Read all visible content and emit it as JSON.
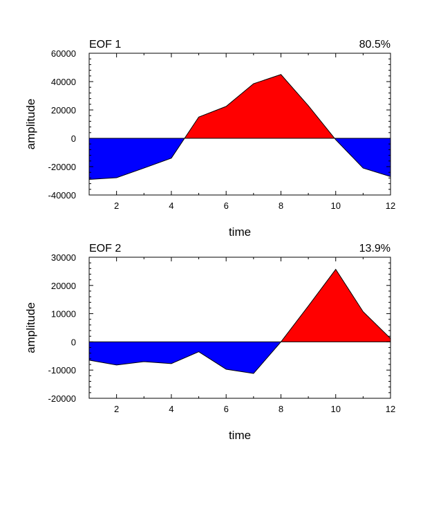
{
  "chart_data": [
    {
      "type": "area",
      "title": "EOF 1",
      "right_title": "80.5%",
      "xlabel": "time",
      "ylabel": "amplitude",
      "xlim": [
        1,
        12
      ],
      "ylim": [
        -40000,
        60000
      ],
      "x_ticks": [
        2,
        4,
        6,
        8,
        10,
        12
      ],
      "y_ticks": [
        -40000,
        -20000,
        0,
        20000,
        40000,
        60000
      ],
      "x": [
        1,
        2,
        3,
        4,
        5,
        6,
        7,
        8,
        9,
        10,
        11,
        12
      ],
      "values": [
        -29000,
        -27800,
        -21000,
        -14000,
        15000,
        22500,
        38500,
        45000,
        23000,
        -1000,
        -21000,
        -27000
      ],
      "fill_above": "#ff0000",
      "fill_below": "#0000ff"
    },
    {
      "type": "area",
      "title": "EOF 2",
      "right_title": "13.9%",
      "xlabel": "time",
      "ylabel": "amplitude",
      "xlim": [
        1,
        12
      ],
      "ylim": [
        -20000,
        30000
      ],
      "x_ticks": [
        2,
        4,
        6,
        8,
        10,
        12
      ],
      "y_ticks": [
        -20000,
        -10000,
        0,
        10000,
        20000,
        30000
      ],
      "x": [
        1,
        2,
        3,
        4,
        5,
        6,
        7,
        8,
        9,
        10,
        11,
        12
      ],
      "values": [
        -6500,
        -8200,
        -7000,
        -7700,
        -3500,
        -9700,
        -11200,
        0,
        12700,
        25700,
        10700,
        1200
      ],
      "fill_above": "#ff0000",
      "fill_below": "#0000ff"
    }
  ]
}
